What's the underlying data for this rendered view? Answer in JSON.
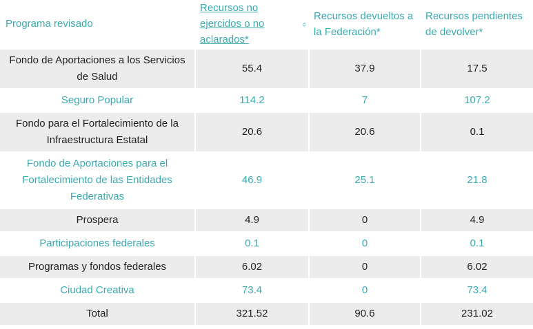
{
  "table": {
    "headers": [
      {
        "label": "Programa revisado",
        "sortable": false
      },
      {
        "label": "Recursos no ejercidos o no aclarados*",
        "sortable": true
      },
      {
        "label": "Recursos devueltos a la Federación*",
        "sortable": false
      },
      {
        "label": "Recursos pendientes de devolver*",
        "sortable": false
      }
    ],
    "rows": [
      {
        "program": "Fondo de Aportaciones a los Servicios de Salud",
        "no_ejercidos": "55.4",
        "devueltos": "37.9",
        "pendientes": "17.5"
      },
      {
        "program": "Seguro Popular",
        "no_ejercidos": "114.2",
        "devueltos": "7",
        "pendientes": "107.2"
      },
      {
        "program": "Fondo para el Fortalecimiento de la Infraestructura Estatal",
        "no_ejercidos": "20.6",
        "devueltos": "20.6",
        "pendientes": "0.1"
      },
      {
        "program": "Fondo de Aportaciones para el Fortalecimiento de las Entidades Federativas",
        "no_ejercidos": "46.9",
        "devueltos": "25.1",
        "pendientes": "21.8"
      },
      {
        "program": "Prospera",
        "no_ejercidos": "4.9",
        "devueltos": "0",
        "pendientes": "4.9"
      },
      {
        "program": "Participaciones federales",
        "no_ejercidos": "0.1",
        "devueltos": "0",
        "pendientes": "0.1"
      },
      {
        "program": "Programas y fondos federales",
        "no_ejercidos": "6.02",
        "devueltos": "0",
        "pendientes": "6.02"
      },
      {
        "program": "Ciudad Creativa",
        "no_ejercidos": "73.4",
        "devueltos": "0",
        "pendientes": "73.4"
      },
      {
        "program": "Total",
        "no_ejercidos": "321.52",
        "devueltos": "90.6",
        "pendientes": "231.02"
      }
    ]
  },
  "icons": {
    "sort": "sort-arrows-icon"
  },
  "colors": {
    "accent": "#3aaab0",
    "shaded_row": "#ececec",
    "text_dark": "#222222"
  }
}
